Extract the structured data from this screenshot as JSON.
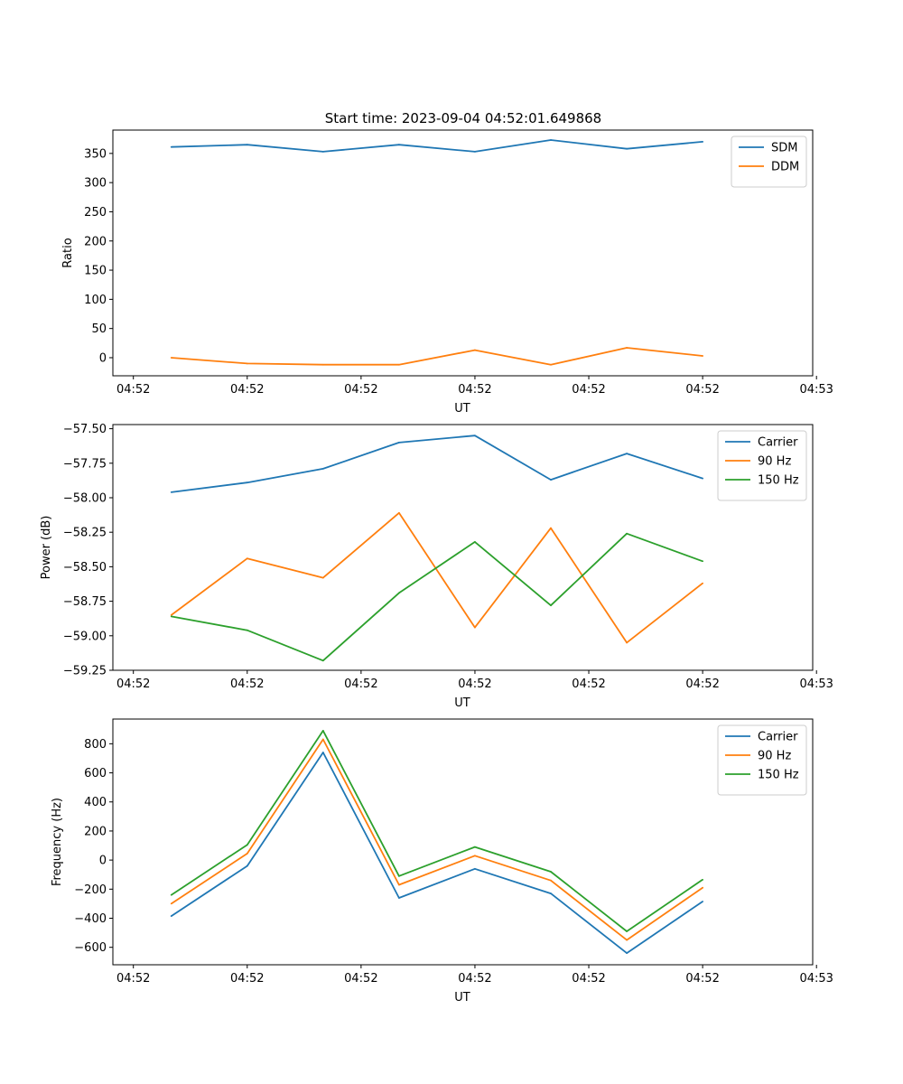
{
  "figure_title": "Start time: 2023-09-04 04:52:01.649868",
  "colors": {
    "c0": "#1f77b4",
    "c1": "#ff7f0e",
    "c2": "#2ca02c"
  },
  "chart_data": [
    {
      "type": "line",
      "xlabel": "UT",
      "ylabel": "Ratio",
      "x": [
        1,
        2,
        3,
        4,
        5,
        6,
        7,
        8
      ],
      "xlim": [
        0.23,
        9.45
      ],
      "ylim": [
        -31,
        390
      ],
      "xticks": [
        0.5,
        2,
        3.5,
        5,
        6.5,
        8,
        9.5
      ],
      "xtick_labels": [
        "04:52",
        "04:52",
        "04:52",
        "04:52",
        "04:52",
        "04:52",
        "04:53"
      ],
      "yticks": [
        0,
        50,
        100,
        150,
        200,
        250,
        300,
        350
      ],
      "ytick_labels": [
        "0",
        "50",
        "100",
        "150",
        "200",
        "250",
        "300",
        "350"
      ],
      "legend_position": "top-right",
      "series": [
        {
          "name": "SDM",
          "color": "#1f77b4",
          "values": [
            361,
            365,
            353,
            365,
            353,
            373,
            358,
            370
          ]
        },
        {
          "name": "DDM",
          "color": "#ff7f0e",
          "values": [
            0,
            -10,
            -12,
            -12,
            13,
            -12,
            17,
            3
          ]
        }
      ]
    },
    {
      "type": "line",
      "xlabel": "UT",
      "ylabel": "Power (dB)",
      "x": [
        1,
        2,
        3,
        4,
        5,
        6,
        7,
        8
      ],
      "xlim": [
        0.23,
        9.45
      ],
      "ylim": [
        -59.25,
        -57.47
      ],
      "xticks": [
        0.5,
        2,
        3.5,
        5,
        6.5,
        8,
        9.5
      ],
      "xtick_labels": [
        "04:52",
        "04:52",
        "04:52",
        "04:52",
        "04:52",
        "04:52",
        "04:53"
      ],
      "yticks": [
        -59.25,
        -59.0,
        -58.75,
        -58.5,
        -58.25,
        -58.0,
        -57.75,
        -57.5
      ],
      "ytick_labels": [
        "−59.25",
        "−59.00",
        "−58.75",
        "−58.50",
        "−58.25",
        "−58.00",
        "−57.75",
        "−57.50"
      ],
      "legend_position": "top-right",
      "series": [
        {
          "name": "Carrier",
          "color": "#1f77b4",
          "values": [
            -57.96,
            -57.89,
            -57.79,
            -57.6,
            -57.55,
            -57.87,
            -57.68,
            -57.86
          ]
        },
        {
          "name": "90 Hz",
          "color": "#ff7f0e",
          "values": [
            -58.85,
            -58.44,
            -58.58,
            -58.11,
            -58.94,
            -58.22,
            -59.05,
            -58.62
          ]
        },
        {
          "name": "150 Hz",
          "color": "#2ca02c",
          "values": [
            -58.86,
            -58.96,
            -59.18,
            -58.69,
            -58.32,
            -58.78,
            -58.26,
            -58.46
          ]
        }
      ]
    },
    {
      "type": "line",
      "xlabel": "UT",
      "ylabel": "Frequency (Hz)",
      "x": [
        1,
        2,
        3,
        4,
        5,
        6,
        7,
        8
      ],
      "xlim": [
        0.23,
        9.45
      ],
      "ylim": [
        -720,
        970
      ],
      "xticks": [
        0.5,
        2,
        3.5,
        5,
        6.5,
        8,
        9.5
      ],
      "xtick_labels": [
        "04:52",
        "04:52",
        "04:52",
        "04:52",
        "04:52",
        "04:52",
        "04:53"
      ],
      "yticks": [
        -600,
        -400,
        -200,
        0,
        200,
        400,
        600,
        800
      ],
      "ytick_labels": [
        "−600",
        "−400",
        "−200",
        "0",
        "200",
        "400",
        "600",
        "800"
      ],
      "legend_position": "top-right",
      "series": [
        {
          "name": "Carrier",
          "color": "#1f77b4",
          "values": [
            -385,
            -40,
            740,
            -260,
            -60,
            -230,
            -640,
            -285
          ]
        },
        {
          "name": "90 Hz",
          "color": "#ff7f0e",
          "values": [
            -300,
            45,
            830,
            -170,
            30,
            -140,
            -550,
            -190
          ]
        },
        {
          "name": "150 Hz",
          "color": "#2ca02c",
          "values": [
            -240,
            105,
            890,
            -110,
            90,
            -80,
            -490,
            -135
          ]
        }
      ]
    }
  ]
}
